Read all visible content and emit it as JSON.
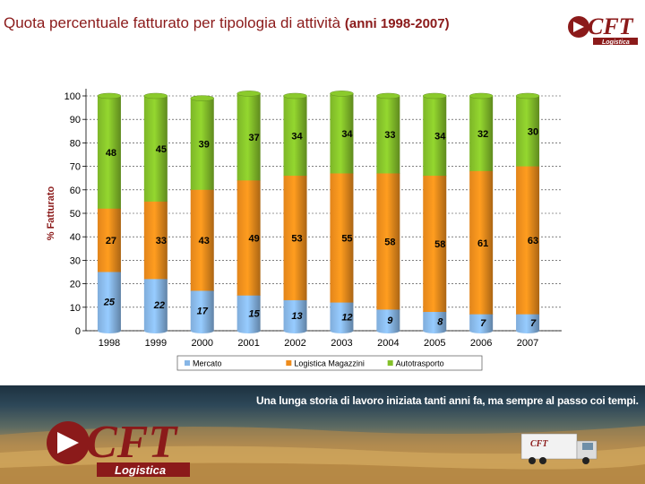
{
  "page": {
    "title_main": "Quota percentuale fatturato per tipologia di attività",
    "title_sub": "(anni 1998-2007)",
    "banner_text": "Una lunga storia di lavoro iniziata tanti anni fa, ma sempre al passo coi tempi.",
    "logo_text": "CFT",
    "logo_subtext": "Logistica"
  },
  "chart_data": {
    "type": "bar",
    "stacked": true,
    "categories": [
      "1998",
      "1999",
      "2000",
      "2001",
      "2002",
      "2003",
      "2004",
      "2005",
      "2006",
      "2007"
    ],
    "series": [
      {
        "name": "Mercato",
        "values": [
          25,
          22,
          17,
          15,
          13,
          12,
          9,
          8,
          7,
          7
        ],
        "color": "#87b6e6"
      },
      {
        "name": "Logistica Magazzini",
        "values": [
          27,
          33,
          43,
          49,
          53,
          55,
          58,
          58,
          61,
          63
        ],
        "color": "#ee8c1c"
      },
      {
        "name": "Autotrasporto",
        "values": [
          48,
          45,
          39,
          37,
          34,
          34,
          33,
          34,
          32,
          30
        ],
        "color": "#84c02a"
      }
    ],
    "ylabel": "% Fatturato",
    "ylim": [
      0,
      100
    ],
    "yticks": [
      0,
      10,
      20,
      30,
      40,
      50,
      60,
      70,
      80,
      90,
      100
    ],
    "grid": true,
    "legend_position": "bottom"
  }
}
